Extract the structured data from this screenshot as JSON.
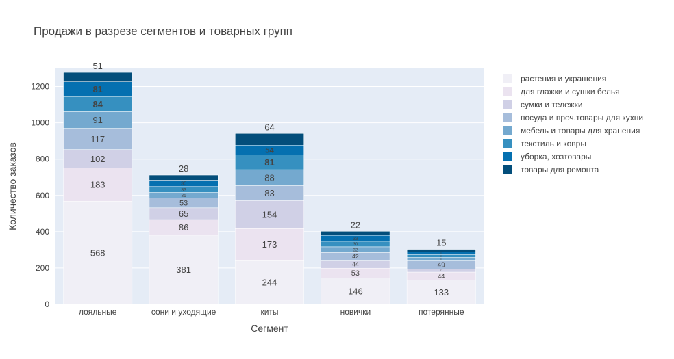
{
  "chart_data": {
    "type": "bar",
    "stacked": true,
    "title": "Продажи в разрезе сегментов и товарных групп",
    "xlabel": "Сегмент",
    "ylabel": "Количество заказов",
    "ylim": [
      0,
      1300
    ],
    "yticks": [
      0,
      200,
      400,
      600,
      800,
      1000,
      1200
    ],
    "grid": true,
    "legend_position": "right",
    "categories": [
      "лояльные",
      "сони и уходящие",
      "киты",
      "новички",
      "потерянные"
    ],
    "series": [
      {
        "name": "растения и украшения",
        "color": "#f0eff6",
        "values": [
          568,
          381,
          244,
          146,
          133
        ]
      },
      {
        "name": "для глажки и сушки белья",
        "color": "#ebe3f0",
        "values": [
          183,
          86,
          173,
          53,
          44
        ]
      },
      {
        "name": "сумки и тележки",
        "color": "#d0d0e6",
        "values": [
          102,
          65,
          154,
          44,
          17
        ]
      },
      {
        "name": "посуда и проч.товары для кухни",
        "color": "#a6bddb",
        "values": [
          117,
          53,
          83,
          42,
          49
        ]
      },
      {
        "name": "мебель и товары для хранения",
        "color": "#74a9cf",
        "values": [
          91,
          31,
          88,
          32,
          15
        ]
      },
      {
        "name": "текстиль и ковры",
        "color": "#3690c0",
        "values": [
          84,
          33,
          81,
          30,
          15
        ]
      },
      {
        "name": "уборка, хозтовары",
        "color": "#0570b0",
        "values": [
          81,
          35,
          54,
          33,
          15
        ]
      },
      {
        "name": "товары для ремонта",
        "color": "#034e7b",
        "values": [
          51,
          28,
          64,
          22,
          15
        ]
      }
    ]
  }
}
